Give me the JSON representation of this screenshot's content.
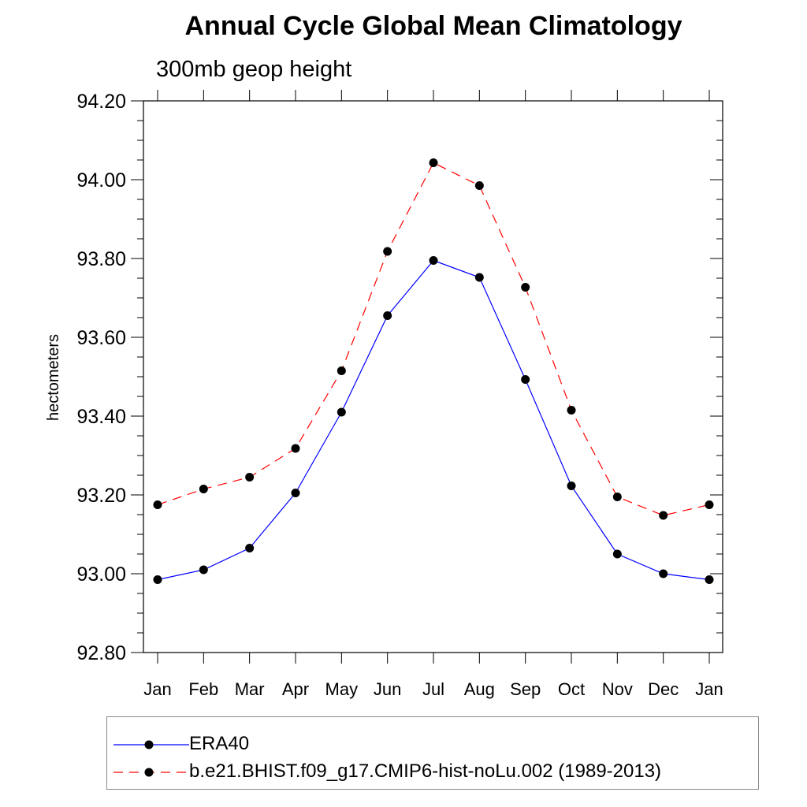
{
  "chart_data": {
    "type": "line",
    "title": "Annual Cycle Global Mean Climatology",
    "subtitle": "300mb geop height",
    "xlabel": "",
    "ylabel": "hectometers",
    "categories": [
      "Jan",
      "Feb",
      "Mar",
      "Apr",
      "May",
      "Jun",
      "Jul",
      "Aug",
      "Sep",
      "Oct",
      "Nov",
      "Dec",
      "Jan"
    ],
    "ylim": [
      92.8,
      94.2
    ],
    "yticks": [
      "92.80",
      "93.00",
      "93.20",
      "93.40",
      "93.60",
      "93.80",
      "94.00",
      "94.20"
    ],
    "grid": false,
    "legend_position": "bottom",
    "series": [
      {
        "name": "ERA40",
        "color": "#0000ff",
        "line_style": "solid",
        "marker": "filled-circle",
        "values": [
          92.985,
          93.01,
          93.065,
          93.205,
          93.41,
          93.655,
          93.795,
          93.752,
          93.493,
          93.223,
          93.05,
          93.0,
          92.985
        ]
      },
      {
        "name": "b.e21.BHIST.f09_g17.CMIP6-hist-noLu.002 (1989-2013)",
        "color": "#ff0000",
        "line_style": "dashed",
        "marker": "filled-circle",
        "values": [
          93.175,
          93.215,
          93.245,
          93.318,
          93.515,
          93.818,
          94.043,
          93.985,
          93.727,
          93.415,
          93.195,
          93.148,
          93.175
        ]
      }
    ]
  }
}
